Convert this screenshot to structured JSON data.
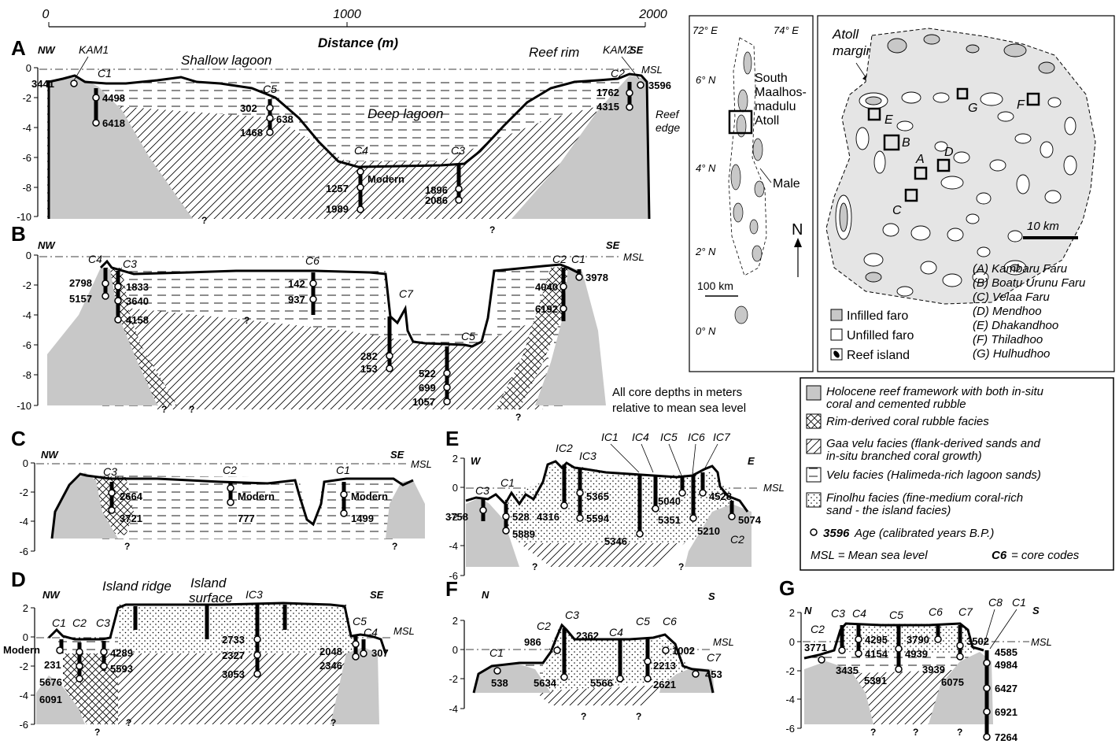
{
  "distance_axis": {
    "title": "Distance (m)",
    "ticks": [
      "0",
      "1000",
      "2000"
    ]
  },
  "depth_ticks_10": [
    "0",
    "-2",
    "-4",
    "-6",
    "-8",
    "-10"
  ],
  "depth_ticks_6": [
    "0",
    "-2",
    "-4",
    "-6"
  ],
  "depth_ticks_e": [
    "2",
    "0",
    "-2",
    "-4",
    "-6"
  ],
  "depth_ticks_f": [
    "2",
    "0",
    "-2",
    "-4"
  ],
  "depth_ticks_g": [
    "2",
    "0",
    "-2",
    "-4",
    "-6"
  ],
  "common": {
    "msl": "MSL",
    "q": "?"
  },
  "panel_a": {
    "letter": "A",
    "left": "NW",
    "right": "SE",
    "labels": [
      "Shallow lagoon",
      "Deep lagoon",
      "Reef rim",
      "Reef",
      "edge"
    ],
    "cores": [
      "KAM1",
      "C1",
      "C5",
      "C4",
      "C3",
      "C2",
      "KAM2"
    ],
    "ages": [
      "3441",
      "4498",
      "6418",
      "302",
      "638",
      "1468",
      "1257",
      "Modern",
      "1989",
      "1896",
      "2086",
      "1762",
      "4315",
      "3596"
    ]
  },
  "panel_b": {
    "letter": "B",
    "left": "NW",
    "right": "SE",
    "cores": [
      "C4",
      "C3",
      "C6",
      "C7",
      "C5",
      "C2",
      "C1"
    ],
    "ages": [
      "2798",
      "5157",
      "1833",
      "3640",
      "4158",
      "142",
      "937",
      "282",
      "153",
      "522",
      "699",
      "1057",
      "4040",
      "6192",
      "3978"
    ]
  },
  "panel_c": {
    "letter": "C",
    "left": "NW",
    "right": "SE",
    "cores": [
      "C3",
      "C2",
      "C1"
    ],
    "ages": [
      "2664",
      "3721",
      "Modern",
      "777",
      "Modern",
      "1499"
    ]
  },
  "panel_d": {
    "letter": "D",
    "left": "NW",
    "right": "SE",
    "labels": [
      "Island ridge",
      "Island",
      "surface"
    ],
    "cores": [
      "C1",
      "C2",
      "C3",
      "IC3",
      "C5",
      "C4"
    ],
    "ages": [
      "Modern",
      "231",
      "5676",
      "6091",
      "4289",
      "5593",
      "2733",
      "2327",
      "3053",
      "2048",
      "2346",
      "307"
    ]
  },
  "panel_e": {
    "letter": "E",
    "left": "W",
    "right": "E",
    "cores": [
      "C3",
      "C1",
      "IC2",
      "IC3",
      "IC1",
      "IC4",
      "IC5",
      "IC6",
      "IC7",
      "C2"
    ],
    "ages": [
      "3758",
      "528",
      "5889",
      "4316",
      "5365",
      "5594",
      "5346",
      "5040",
      "5351",
      "4528",
      "5210",
      "5074"
    ]
  },
  "panel_f": {
    "letter": "F",
    "left": "N",
    "right": "S",
    "cores": [
      "C1",
      "C2",
      "C3",
      "C4",
      "C5",
      "C6",
      "C7"
    ],
    "ages": [
      "538",
      "986",
      "2362",
      "5634",
      "5566",
      "2213",
      "2621",
      "1002",
      "453"
    ]
  },
  "panel_g": {
    "letter": "G",
    "left": "N",
    "right": "S",
    "cores": [
      "C2",
      "C3",
      "C4",
      "C5",
      "C6",
      "C7",
      "C8",
      "C1"
    ],
    "ages": [
      "3771",
      "3435",
      "4295",
      "4154",
      "5391",
      "3790",
      "4939",
      "3939",
      "6075",
      "3502",
      "4585",
      "4984",
      "6427",
      "6921",
      "7264"
    ]
  },
  "location_map": {
    "lon": [
      "72° E",
      "74° E"
    ],
    "lat": [
      "6° N",
      "4° N",
      "2° N",
      "0° N"
    ],
    "place1": [
      "South",
      "Maalhos-",
      "madulu",
      "Atoll"
    ],
    "place2": "Male",
    "north": "N",
    "scale": "100 km"
  },
  "atoll_map": {
    "title": [
      "Atoll",
      "margin"
    ],
    "sites": [
      "A",
      "B",
      "C",
      "D",
      "E",
      "F",
      "G"
    ],
    "scale": "10 km",
    "legend": [
      "Infilled faro",
      "Unfilled faro",
      "Reef island"
    ],
    "site_names": [
      "(A) Kambaru Faru",
      "(B) Boatu Urunu Faru",
      "(C) Velaa Faru",
      "(D) Mendhoo",
      "(E) Dhakandhoo",
      "(F) Thiladhoo",
      "(G) Hulhudhoo"
    ]
  },
  "note": [
    "All core depths in meters",
    "relative to mean sea level"
  ],
  "facies_legend": {
    "items": [
      [
        "Holocene reef framework with both in-situ",
        "coral and cemented rubble"
      ],
      [
        "Rim-derived coral rubble facies"
      ],
      [
        "Gaa velu facies (flank-derived sands and",
        "in-situ branched coral growth)"
      ],
      [
        "Velu facies (Halimeda-rich lagoon sands)"
      ],
      [
        "Finolhu facies (fine-medium coral-rich",
        "sand - the island facies)"
      ]
    ],
    "age_example": "3596",
    "age_text": "Age (calibrated years B.P.)",
    "msl_def": "MSL = Mean sea level",
    "code_example": "C6",
    "code_text": "= core codes"
  }
}
